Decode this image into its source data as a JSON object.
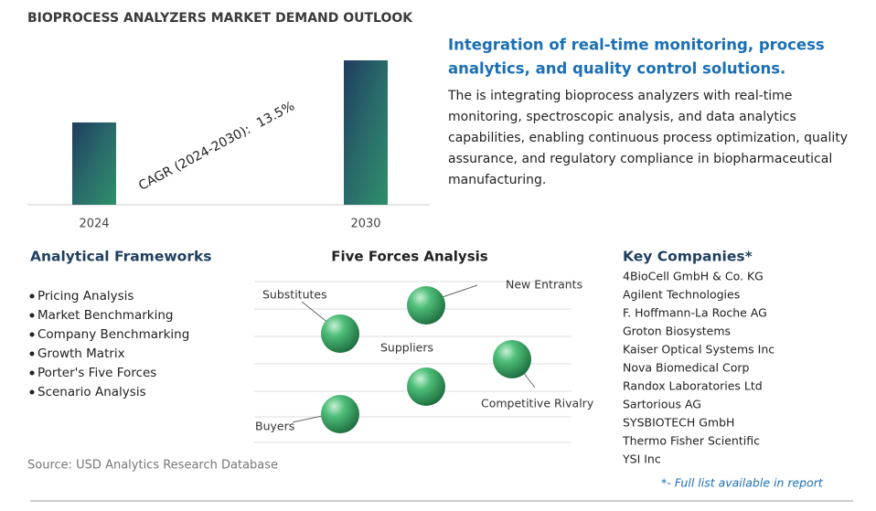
{
  "title": "BIOPROCESS ANALYZERS MARKET DEMAND OUTLOOK",
  "chart_data": {
    "type": "bar",
    "categories": [
      "2024",
      "2030"
    ],
    "values": [
      57,
      100
    ],
    "annotation": {
      "label": "CAGR (2024-2030):",
      "value": "13.5%"
    }
  },
  "highlight": {
    "heading": [
      "Integration of real-time monitoring, process",
      "analytics, and quality control solutions."
    ],
    "body": [
      "The is integrating bioprocess analyzers with real-time",
      "monitoring, spectroscopic analysis, and data analytics",
      "capabilities, enabling continuous process optimization, quality",
      "assurance, and regulatory compliance in biopharmaceutical",
      "manufacturing."
    ]
  },
  "frameworks": {
    "heading": "Analytical Frameworks",
    "items": [
      "Pricing Analysis",
      "Market Benchmarking",
      "Company Benchmarking",
      "Growth Matrix",
      "Porter's Five Forces",
      "Scenario Analysis"
    ]
  },
  "five_forces": {
    "heading": "Five Forces Analysis",
    "labels": [
      "Substitutes",
      "New Entrants",
      "Suppliers",
      "Competitive Rivalry",
      "Buyers"
    ]
  },
  "companies": {
    "heading": "Key Companies*",
    "items": [
      "4BioCell GmbH & Co. KG",
      "Agilent Technologies",
      "F. Hoffmann-La Roche AG",
      "Groton Biosystems",
      "Kaiser Optical Systems Inc",
      "Nova Biomedical Corp",
      "Randox Laboratories Ltd",
      "Sartorious AG",
      "SYSBIOTECH GmbH",
      "Thermo Fisher Scientific",
      "YSI Inc"
    ],
    "note": "*- Full list available in report"
  },
  "source": "Source: USD Analytics Research Database"
}
